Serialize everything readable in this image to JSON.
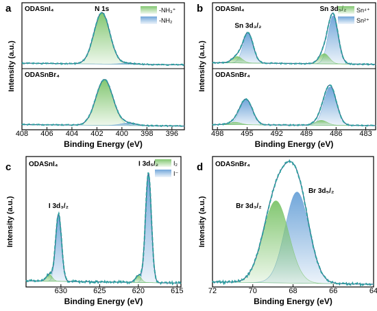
{
  "chart_data": [
    {
      "panel": "a",
      "type": "line",
      "xlabel": "Binding Energy (eV)",
      "ylabel": "Intensity (a.u.)",
      "xlim": [
        408,
        395
      ],
      "xticks": [
        408,
        406,
        404,
        402,
        400,
        398,
        396
      ],
      "peak_label": "N 1s",
      "legend": [
        {
          "label": "-NH₃⁺",
          "color": "#7cc46a"
        },
        {
          "label": "-NH₂",
          "color": "#6aa2d8"
        }
      ],
      "subplots": [
        {
          "sample": "ODASnI₄",
          "baseline_left": 0.05,
          "baseline_right": 0.02,
          "components": [
            {
              "name": "-NH₃⁺",
              "center": 401.6,
              "fwhm": 1.5,
              "amp": 0.96
            },
            {
              "name": "-NH₂",
              "center": 399.6,
              "fwhm": 1.3,
              "amp": 0.02
            }
          ]
        },
        {
          "sample": "ODASnBr₄",
          "baseline_left": 0.05,
          "baseline_right": 0.02,
          "components": [
            {
              "name": "-NH₃⁺",
              "center": 401.4,
              "fwhm": 1.6,
              "amp": 0.94
            },
            {
              "name": "-NH₂",
              "center": 399.5,
              "fwhm": 1.4,
              "amp": 0.05
            }
          ]
        }
      ]
    },
    {
      "panel": "b",
      "type": "line",
      "xlabel": "Binding Energy (eV)",
      "ylabel": "Intensity (a.u.)",
      "xlim": [
        498.5,
        482
      ],
      "xticks": [
        498,
        495,
        492,
        489,
        486,
        483
      ],
      "peak_labels": [
        {
          "label": "Sn 3d₃/₂",
          "x": 494.9
        },
        {
          "label": "Sn 3d₅/₂",
          "x": 486.3
        }
      ],
      "legend": [
        {
          "label": "Sn⁴⁺",
          "color": "#7cc46a"
        },
        {
          "label": "Sn²⁺",
          "color": "#6aa2d8"
        }
      ],
      "subplots": [
        {
          "sample": "ODASnI₄",
          "baseline_left": 0.06,
          "baseline_right": 0.03,
          "components": [
            {
              "name": "Sn²⁺",
              "center": 494.9,
              "fwhm": 1.2,
              "amp": 0.56
            },
            {
              "name": "Sn⁴⁺",
              "center": 496.0,
              "fwhm": 1.2,
              "amp": 0.12
            },
            {
              "name": "Sn²⁺",
              "center": 486.3,
              "fwhm": 1.2,
              "amp": 0.9
            },
            {
              "name": "Sn⁴⁺",
              "center": 487.2,
              "fwhm": 1.2,
              "amp": 0.19
            }
          ]
        },
        {
          "sample": "ODASnBr₄",
          "baseline_left": 0.05,
          "baseline_right": 0.03,
          "components": [
            {
              "name": "Sn²⁺",
              "center": 495.1,
              "fwhm": 1.5,
              "amp": 0.52
            },
            {
              "name": "Sn⁴⁺",
              "center": 496.2,
              "fwhm": 1.4,
              "amp": 0.05
            },
            {
              "name": "Sn²⁺",
              "center": 486.6,
              "fwhm": 1.5,
              "amp": 0.79
            },
            {
              "name": "Sn⁴⁺",
              "center": 487.5,
              "fwhm": 1.4,
              "amp": 0.1
            }
          ]
        }
      ]
    },
    {
      "panel": "c",
      "type": "line",
      "sample": "ODASnI₄",
      "xlabel": "Binding Energy (eV)",
      "ylabel": "Intensity (a.u.)",
      "xlim": [
        634.5,
        614.5
      ],
      "xticks": [
        630,
        625,
        620,
        615
      ],
      "peak_labels": [
        {
          "label": "I 3d₃/₂",
          "x": 630.3
        },
        {
          "label": "I 3d₅/₂",
          "x": 618.7
        }
      ],
      "legend": [
        {
          "label": "I₂",
          "color": "#7cc46a"
        },
        {
          "label": "I⁻",
          "color": "#6aa2d8"
        }
      ],
      "baseline_left": 0.03,
      "baseline_right": 0.01,
      "components": [
        {
          "name": "I⁻",
          "center": 630.3,
          "fwhm": 0.9,
          "amp": 0.59
        },
        {
          "name": "I₂",
          "center": 631.5,
          "fwhm": 0.9,
          "amp": 0.06
        },
        {
          "name": "I⁻",
          "center": 618.7,
          "fwhm": 0.9,
          "amp": 0.96
        },
        {
          "name": "I₂",
          "center": 620.0,
          "fwhm": 0.9,
          "amp": 0.06
        }
      ]
    },
    {
      "panel": "d",
      "type": "line",
      "sample": "ODASnBr₄",
      "xlabel": "Binding Energy (eV)",
      "ylabel": "Intensity (a.u.)",
      "xlim": [
        72,
        64
      ],
      "xticks": [
        72,
        70,
        68,
        66,
        64
      ],
      "peak_labels": [
        {
          "label": "Br 3d₃/₂",
          "x": 68.9
        },
        {
          "label": "Br 3d₅/₂",
          "x": 67.7
        }
      ],
      "baseline_left": 0.02,
      "baseline_right": 0.0,
      "components": [
        {
          "name": "Br 3d₃/₂",
          "center": 68.85,
          "fwhm": 1.5,
          "amp": 0.72,
          "color": "#7cc46a"
        },
        {
          "name": "Br 3d₅/₂",
          "center": 67.8,
          "fwhm": 1.4,
          "amp": 0.8,
          "color": "#6aa2d8"
        }
      ]
    }
  ],
  "colors": {
    "green": "#7cc46a",
    "blue": "#6aa2d8",
    "envelope": "#1f8f8f",
    "fit": "#2e5e87",
    "data": "#2f9fa0"
  }
}
